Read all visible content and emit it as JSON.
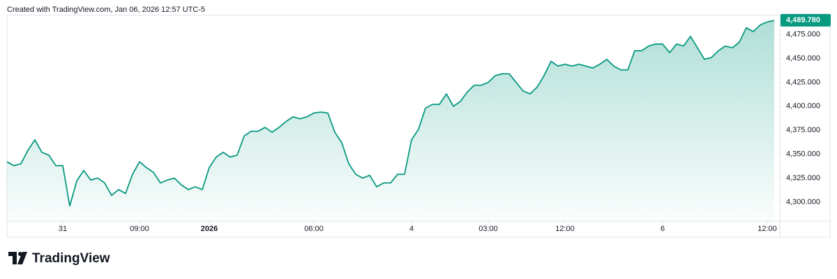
{
  "chart_data": {
    "type": "area",
    "caption": "Created with TradingView.com, Jan 06, 2026 12:57 UTC-5",
    "brand": "TradingView",
    "color": "#089981",
    "values": [
      4342,
      4338,
      4340,
      4354,
      4365,
      4352,
      4349,
      4338,
      4338,
      4296,
      4322,
      4333,
      4323,
      4325,
      4320,
      4307,
      4313,
      4309,
      4329,
      4342,
      4336,
      4331,
      4320,
      4323,
      4325,
      4318,
      4313,
      4316,
      4313,
      4336,
      4347,
      4352,
      4347,
      4349,
      4369,
      4374,
      4374,
      4378,
      4373,
      4378,
      4384,
      4389,
      4387,
      4389,
      4393,
      4394,
      4393,
      4373,
      4362,
      4340,
      4329,
      4325,
      4328,
      4316,
      4320,
      4320,
      4329,
      4329,
      4365,
      4376,
      4398,
      4402,
      4402,
      4413,
      4400,
      4405,
      4415,
      4422,
      4422,
      4425,
      4432,
      4434,
      4434,
      4425,
      4416,
      4413,
      4420,
      4432,
      4447,
      4442,
      4444,
      4442,
      4444,
      4442,
      4440,
      4444,
      4449,
      4442,
      4438,
      4438,
      4458,
      4458,
      4463,
      4465,
      4465,
      4456,
      4465,
      4463,
      4473,
      4461,
      4449,
      4451,
      4458,
      4463,
      4461,
      4467,
      4482,
      4478,
      4485,
      4488,
      4489.78
    ],
    "last_price": {
      "value": 4489.78,
      "label": "4,489.780"
    },
    "xlim": [
      0,
      110
    ],
    "xticks": [
      {
        "value": 8,
        "label": "31"
      },
      {
        "value": 19,
        "label": "09:00"
      },
      {
        "value": 29,
        "label": "2026"
      },
      {
        "value": 44,
        "label": "06:00"
      },
      {
        "value": 58,
        "label": "4"
      },
      {
        "value": 69,
        "label": "03:00"
      },
      {
        "value": 80,
        "label": "12:00"
      },
      {
        "value": 94,
        "label": "6"
      },
      {
        "value": 109,
        "label": "12:00"
      }
    ],
    "ylim": [
      4280,
      4495
    ],
    "yticks": [
      {
        "value": 4300,
        "label": "4,300.000"
      },
      {
        "value": 4325,
        "label": "4,325.000"
      },
      {
        "value": 4350,
        "label": "4,350.000"
      },
      {
        "value": 4375,
        "label": "4,375.000"
      },
      {
        "value": 4400,
        "label": "4,400.000"
      },
      {
        "value": 4425,
        "label": "4,425.000"
      },
      {
        "value": 4450,
        "label": "4,450.000"
      },
      {
        "value": 4475,
        "label": "4,475.000"
      }
    ]
  }
}
